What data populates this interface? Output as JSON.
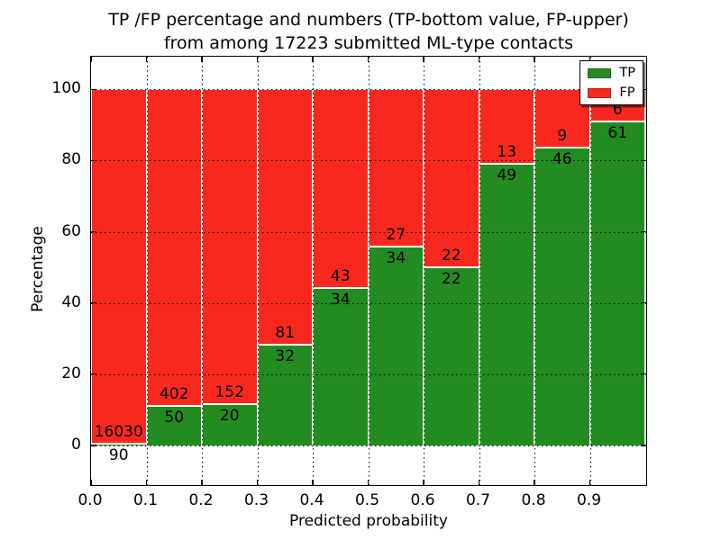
{
  "title": {
    "line1": "TP /FP percentage and numbers (TP-bottom value, FP-upper)",
    "line2": "from among 17223 submitted ML-type contacts"
  },
  "axes": {
    "xlabel": "Predicted probability",
    "ylabel": "Percentage"
  },
  "legend": [
    {
      "label": "TP",
      "color": "#228b22"
    },
    {
      "label": "FP",
      "color": "#f8281e"
    }
  ],
  "chart_data": {
    "type": "bar",
    "stacked": true,
    "orientation": "vertical",
    "title": "TP /FP percentage and numbers (TP-bottom value, FP-upper) from among 17223 submitted ML-type contacts",
    "xlabel": "Predicted probability",
    "ylabel": "Percentage",
    "xlim": [
      0.0,
      1.0
    ],
    "ylim": [
      -10.9,
      109.2
    ],
    "x_tick_labels": [
      "0.0",
      "0.1",
      "0.2",
      "0.3",
      "0.4",
      "0.5",
      "0.6",
      "0.7",
      "0.8",
      "0.9"
    ],
    "y_tick_labels": [
      "0",
      "20",
      "40",
      "60",
      "80",
      "100"
    ],
    "grid": "dotted",
    "legend_position": "upper right",
    "total_contacts": 17223,
    "bin_width": 0.1,
    "bins": [
      {
        "range": "0.0-0.1",
        "tp": 90,
        "fp": 16030,
        "tp_pct": 0.56
      },
      {
        "range": "0.1-0.2",
        "tp": 50,
        "fp": 402,
        "tp_pct": 11.06
      },
      {
        "range": "0.2-0.3",
        "tp": 20,
        "fp": 152,
        "tp_pct": 11.63
      },
      {
        "range": "0.3-0.4",
        "tp": 32,
        "fp": 81,
        "tp_pct": 28.32
      },
      {
        "range": "0.4-0.5",
        "tp": 34,
        "fp": 43,
        "tp_pct": 44.16
      },
      {
        "range": "0.5-0.6",
        "tp": 34,
        "fp": 27,
        "tp_pct": 55.74
      },
      {
        "range": "0.6-0.7",
        "tp": 22,
        "fp": 22,
        "tp_pct": 50.0
      },
      {
        "range": "0.7-0.8",
        "tp": 49,
        "fp": 13,
        "tp_pct": 79.03
      },
      {
        "range": "0.8-0.9",
        "tp": 46,
        "fp": 9,
        "tp_pct": 83.64
      },
      {
        "range": "0.9-1.0",
        "tp": 61,
        "fp": 6,
        "tp_pct": 91.04
      }
    ],
    "series": [
      {
        "name": "TP",
        "color": "#228b22",
        "counts": [
          90,
          50,
          20,
          32,
          34,
          34,
          22,
          49,
          46,
          61
        ],
        "percent": [
          0.56,
          11.06,
          11.63,
          28.32,
          44.16,
          55.74,
          50.0,
          79.03,
          83.64,
          91.04
        ]
      },
      {
        "name": "FP",
        "color": "#f8281e",
        "counts": [
          16030,
          402,
          152,
          81,
          43,
          27,
          22,
          13,
          9,
          6
        ],
        "percent": [
          99.44,
          88.94,
          88.37,
          71.68,
          55.84,
          44.26,
          50.0,
          20.97,
          16.36,
          8.96
        ]
      }
    ]
  }
}
